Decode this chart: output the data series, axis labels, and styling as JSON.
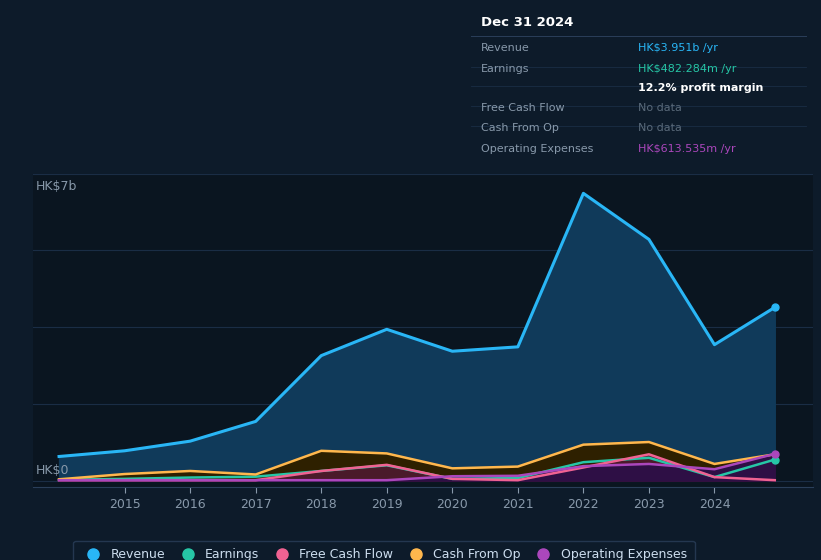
{
  "bg_color": "#0d1b2a",
  "chart_bg": "#0a1520",
  "grid_color": "#1a2d45",
  "years": [
    2014,
    2015,
    2016,
    2017,
    2018,
    2019,
    2020,
    2021,
    2022,
    2023,
    2024,
    2024.92
  ],
  "revenue": [
    0.55,
    0.68,
    0.9,
    1.35,
    2.85,
    3.45,
    2.95,
    3.05,
    6.55,
    5.5,
    3.1,
    3.95
  ],
  "earnings": [
    0.02,
    0.04,
    0.07,
    0.09,
    0.22,
    0.35,
    0.04,
    0.06,
    0.42,
    0.52,
    0.08,
    0.48
  ],
  "free_cash_flow": [
    0.01,
    0.01,
    0.01,
    0.01,
    0.22,
    0.36,
    0.04,
    0.01,
    0.3,
    0.6,
    0.08,
    0.01
  ],
  "cash_from_op": [
    0.03,
    0.15,
    0.22,
    0.14,
    0.68,
    0.62,
    0.28,
    0.32,
    0.82,
    0.88,
    0.38,
    0.6
  ],
  "operating_expenses": [
    0.01,
    0.01,
    0.01,
    0.01,
    0.01,
    0.01,
    0.1,
    0.11,
    0.33,
    0.38,
    0.26,
    0.61
  ],
  "revenue_color": "#29b6f6",
  "earnings_color": "#26c6a6",
  "free_cash_flow_color": "#f06292",
  "cash_from_op_color": "#ffb74d",
  "operating_expenses_color": "#ab47bc",
  "revenue_fill": "#103a5a",
  "earnings_fill": "#0d3a2a",
  "free_cash_flow_fill": "#4a1a2a",
  "cash_from_op_fill": "#2e2000",
  "operating_expenses_fill": "#2e0f45",
  "ylim_max": 7.0,
  "ylabel_top": "HK$7b",
  "ylabel_bot": "HK$0",
  "title_box": "Dec 31 2024",
  "legend_labels": [
    "Revenue",
    "Earnings",
    "Free Cash Flow",
    "Cash From Op",
    "Operating Expenses"
  ],
  "legend_colors": [
    "#29b6f6",
    "#26c6a6",
    "#f06292",
    "#ffb74d",
    "#ab47bc"
  ]
}
